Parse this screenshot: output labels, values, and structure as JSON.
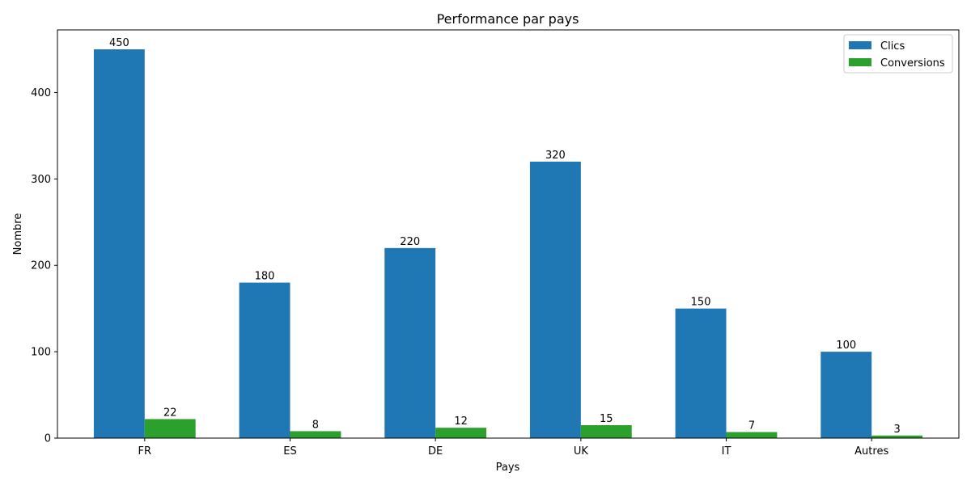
{
  "chart_data": {
    "type": "bar",
    "title": "Performance par pays",
    "xlabel": "Pays",
    "ylabel": "Nombre",
    "categories": [
      "FR",
      "ES",
      "DE",
      "UK",
      "IT",
      "Autres"
    ],
    "series": [
      {
        "name": "Clics",
        "color": "#1f77b4",
        "values": [
          450,
          180,
          220,
          320,
          150,
          100
        ]
      },
      {
        "name": "Conversions",
        "color": "#2ca02c",
        "values": [
          22,
          8,
          12,
          15,
          7,
          3
        ]
      }
    ],
    "ylim": [
      0,
      472.5
    ],
    "yticks": [
      0,
      100,
      200,
      300,
      400
    ],
    "legend": "top-right",
    "grid": false
  }
}
